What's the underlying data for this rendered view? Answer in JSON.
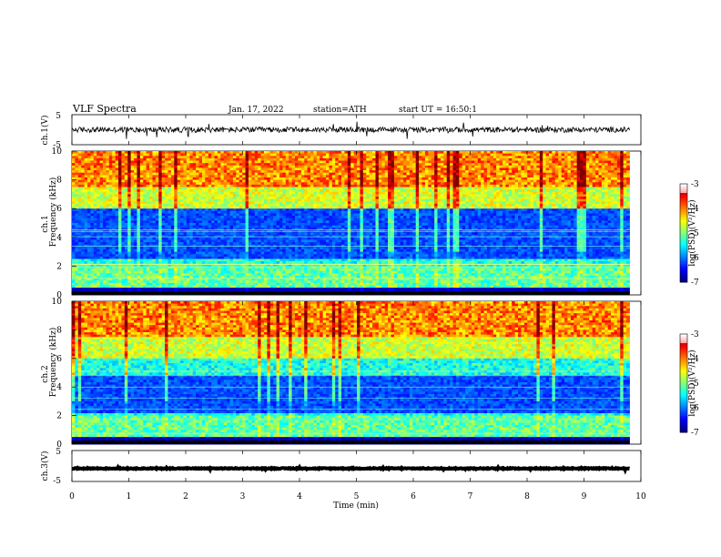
{
  "header": {
    "title": "VLF Spectra",
    "date": "Jan. 17, 2022",
    "station": "station=ATH",
    "start": "start UT = 16:50:1"
  },
  "chart_data": [
    {
      "type": "line",
      "panel": "ch1-waveform",
      "ylabel": "ch.1(V)",
      "ylim": [
        -5,
        5
      ],
      "yticks": [
        "5",
        "-5"
      ],
      "xlim": [
        0,
        10
      ],
      "series": [
        {
          "color": "#000000",
          "x_range": [
            0,
            9.8
          ],
          "mean": 0,
          "noise": 0.9
        }
      ]
    },
    {
      "type": "heatmap",
      "panel": "ch1-spectrogram",
      "channel_label": "ch.1",
      "ylabel": "Frequency (kHz)",
      "ylim": [
        0,
        10
      ],
      "yticks": [
        "0",
        "2",
        "4",
        "6",
        "8",
        "10"
      ],
      "xlim": [
        0,
        9.8
      ],
      "colorbar": {
        "label": "log(PSD)(V²/Hz)",
        "range": [
          -7,
          -3
        ],
        "ticks": [
          "-3",
          "-4",
          "-5",
          "-6",
          "-7"
        ]
      }
    },
    {
      "type": "heatmap",
      "panel": "ch2-spectrogram",
      "channel_label": "ch.2",
      "ylabel": "Frequency (kHz)",
      "ylim": [
        0,
        10
      ],
      "yticks": [
        "0",
        "2",
        "4",
        "6",
        "8",
        "10"
      ],
      "xlim": [
        0,
        9.8
      ],
      "colorbar": {
        "label": "log(PSD)(V²/Hz)",
        "range": [
          -7,
          -3
        ],
        "ticks": [
          "-3",
          "-4",
          "-5",
          "-6",
          "-7"
        ]
      }
    },
    {
      "type": "line",
      "panel": "ch3-waveform",
      "ylabel": "ch.3(V)",
      "ylim": [
        -5,
        5
      ],
      "yticks": [
        "5",
        "-5"
      ],
      "xlim": [
        0,
        10
      ],
      "series": [
        {
          "color": "#000000",
          "x_range": [
            0,
            9.8
          ],
          "mean": -0.8,
          "noise": 0.15
        }
      ]
    }
  ],
  "xaxis": {
    "label": "Time (min)",
    "range": [
      0,
      10
    ],
    "ticks": [
      "0",
      "1",
      "2",
      "3",
      "4",
      "5",
      "6",
      "7",
      "8",
      "9",
      "10"
    ]
  }
}
